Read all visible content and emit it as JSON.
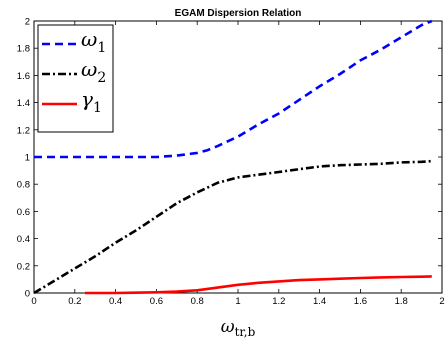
{
  "chart_data": {
    "type": "line",
    "title": "EGAM Dispersion Relation",
    "xlabel": {
      "symbol": "ω",
      "subscript": "tr,b"
    },
    "ylabel": "",
    "xlim": [
      0,
      2
    ],
    "ylim": [
      0,
      2
    ],
    "xticks": [
      "0",
      "0.2",
      "0.4",
      "0.6",
      "0.8",
      "1",
      "1.2",
      "1.4",
      "1.6",
      "1.8",
      "2"
    ],
    "yticks": [
      "0",
      "0.2",
      "0.4",
      "0.6",
      "0.8",
      "1",
      "1.2",
      "1.4",
      "1.6",
      "1.8",
      "2"
    ],
    "grid": false,
    "legend_position": "top-left",
    "series": [
      {
        "name": "ω",
        "subscript": "1",
        "color": "#0000ff",
        "dash": "dashed",
        "x": [
          0,
          0.2,
          0.4,
          0.6,
          0.7,
          0.8,
          0.85,
          0.9,
          1.0,
          1.1,
          1.2,
          1.3,
          1.4,
          1.5,
          1.6,
          1.7,
          1.8,
          1.9,
          1.95
        ],
        "y": [
          1.0,
          1.0,
          1.0,
          1.0,
          1.01,
          1.03,
          1.05,
          1.08,
          1.15,
          1.24,
          1.32,
          1.42,
          1.52,
          1.61,
          1.71,
          1.79,
          1.88,
          1.97,
          2.0
        ]
      },
      {
        "name": "ω",
        "subscript": "2",
        "color": "#000000",
        "dash": "dashdot",
        "x": [
          0,
          0.1,
          0.2,
          0.3,
          0.4,
          0.5,
          0.6,
          0.7,
          0.8,
          0.9,
          1.0,
          1.1,
          1.2,
          1.3,
          1.4,
          1.5,
          1.6,
          1.7,
          1.8,
          1.9,
          1.95
        ],
        "y": [
          0,
          0.09,
          0.18,
          0.27,
          0.37,
          0.46,
          0.56,
          0.66,
          0.74,
          0.81,
          0.85,
          0.87,
          0.89,
          0.91,
          0.93,
          0.94,
          0.945,
          0.95,
          0.96,
          0.965,
          0.97
        ]
      },
      {
        "name": "γ",
        "subscript": "1",
        "color": "#ff0000",
        "dash": "solid",
        "x": [
          0.25,
          0.4,
          0.6,
          0.7,
          0.8,
          0.9,
          1.0,
          1.1,
          1.2,
          1.3,
          1.4,
          1.5,
          1.6,
          1.7,
          1.8,
          1.9,
          1.95
        ],
        "y": [
          0,
          0,
          0.005,
          0.01,
          0.02,
          0.04,
          0.06,
          0.075,
          0.085,
          0.095,
          0.1,
          0.105,
          0.11,
          0.115,
          0.118,
          0.12,
          0.122
        ]
      }
    ]
  }
}
